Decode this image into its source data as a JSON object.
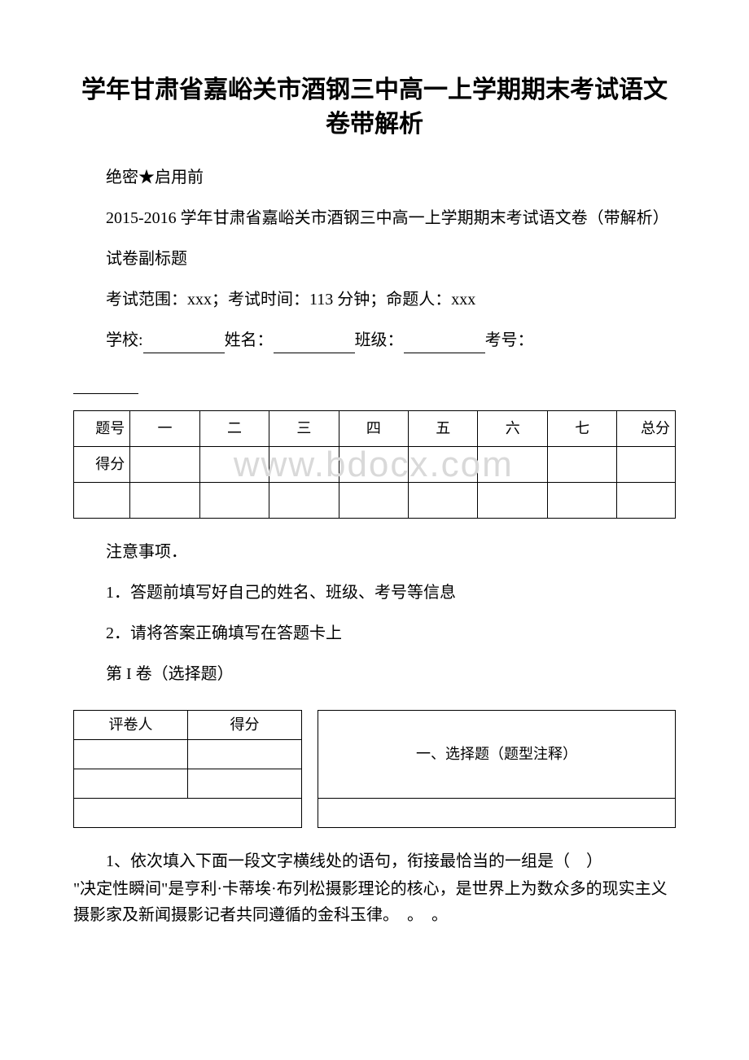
{
  "title": "学年甘肃省嘉峪关市酒钢三中高一上学期期末考试语文卷带解析",
  "confidential": "绝密★启用前",
  "subtitle_full": "2015-2016 学年甘肃省嘉峪关市酒钢三中高一上学期期末考试语文卷（带解析）",
  "sub_label": "试卷副标题",
  "exam_info": "考试范围：xxx；考试时间：113 分钟；命题人：xxx",
  "fields": {
    "school": "学校:",
    "name": "姓名：",
    "class": "班级：",
    "exam_no": "考号："
  },
  "score_table": {
    "row1_label": "题号",
    "row2_label": "得分",
    "headers": [
      "一",
      "二",
      "三",
      "四",
      "五",
      "六",
      "七"
    ],
    "total_label": "总分"
  },
  "watermark": "www.bdocx.com",
  "notice_header": "注意事项．",
  "notice_1": "1．答题前填写好自己的姓名、班级、考号等信息",
  "notice_2": "2．请将答案正确填写在答题卡上",
  "volume_label": "第 I 卷（选择题）",
  "section_table": {
    "grader": "评卷人",
    "score": "得分",
    "section_title": "一、选择题（题型注释）"
  },
  "question1": {
    "stem": "1、依次填入下面一段文字横线处的语句，衔接最恰当的一组是（　）",
    "text": "\"决定性瞬间\"是亨利·卡蒂埃·布列松摄影理论的核心，是世界上为数众多的现实主义摄影家及新闻摄影记者共同遵循的金科玉律。　。　。"
  }
}
